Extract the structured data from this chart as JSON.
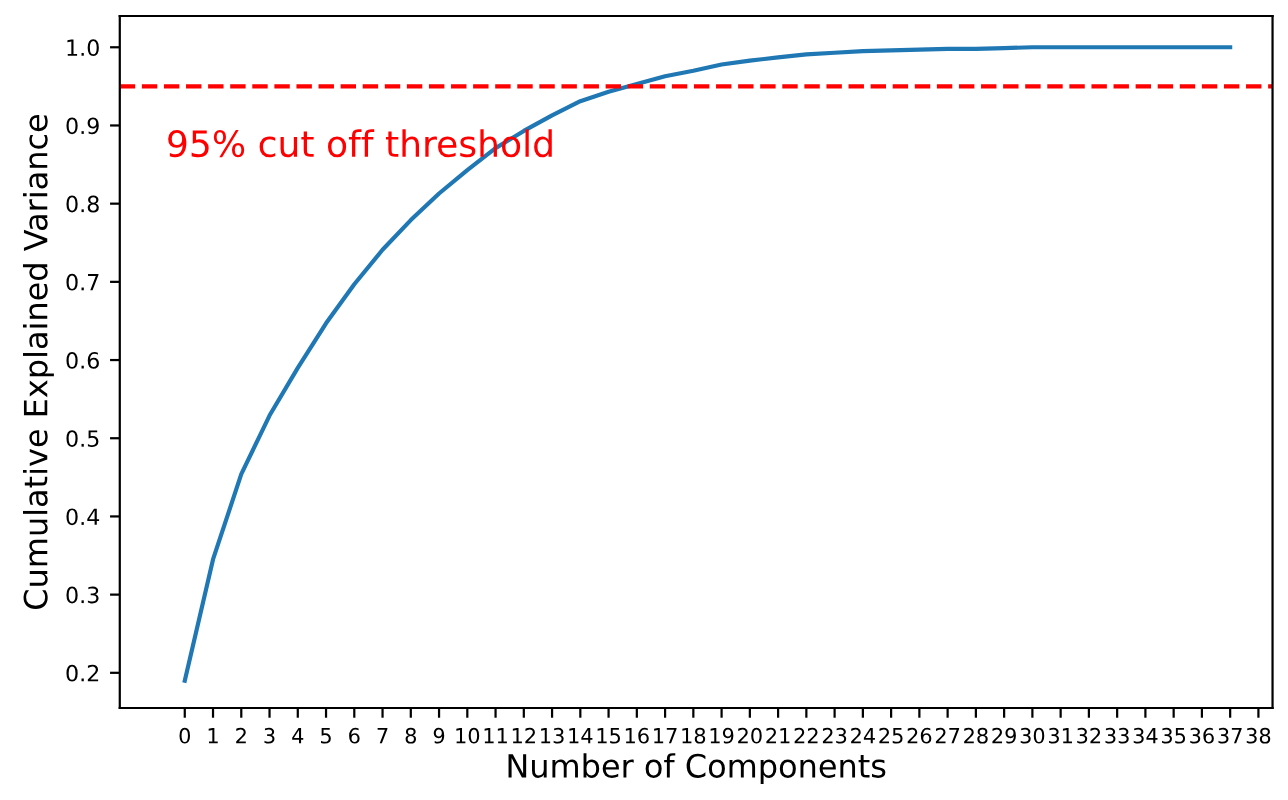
{
  "chart_data": {
    "type": "line",
    "xlabel": "Number of Components",
    "ylabel": "Cumulative Explained Variance",
    "x": [
      0,
      1,
      2,
      3,
      4,
      5,
      6,
      7,
      8,
      9,
      10,
      11,
      12,
      13,
      14,
      15,
      16,
      17,
      18,
      19,
      20,
      21,
      22,
      23,
      24,
      25,
      26,
      27,
      28,
      29,
      30,
      31,
      32,
      33,
      34,
      35,
      36,
      37
    ],
    "series": [
      {
        "color": "#1f77b4",
        "values": [
          0.19,
          0.345,
          0.454,
          0.529,
          0.59,
          0.647,
          0.697,
          0.741,
          0.779,
          0.813,
          0.843,
          0.871,
          0.893,
          0.913,
          0.931,
          0.943,
          0.953,
          0.963,
          0.97,
          0.978,
          0.983,
          0.987,
          0.991,
          0.993,
          0.995,
          0.996,
          0.997,
          0.998,
          0.998,
          0.999,
          1.0,
          1.0,
          1.0,
          1.0,
          1.0,
          1.0,
          1.0,
          1.0
        ]
      }
    ],
    "xlim": [
      -2.3,
      38.5
    ],
    "xticks": [
      0,
      1,
      2,
      3,
      4,
      5,
      6,
      7,
      8,
      9,
      10,
      11,
      12,
      13,
      14,
      15,
      16,
      17,
      18,
      19,
      20,
      21,
      22,
      23,
      24,
      25,
      26,
      27,
      28,
      29,
      30,
      31,
      32,
      33,
      34,
      35,
      36,
      37,
      38
    ],
    "ylim": [
      0.155,
      1.04
    ],
    "yticks": [
      0.2,
      0.3,
      0.4,
      0.5,
      0.6,
      0.7,
      0.8,
      0.9,
      {
        "value": 1,
        "label": "1.0"
      }
    ],
    "ref_lines": [
      {
        "axis": "y",
        "value": 0.95,
        "label": "95% cut off threshold",
        "color": "#ff0000",
        "line_style": "dashed"
      }
    ],
    "grid": false,
    "legend": false,
    "marker": "none",
    "line_style": "solid"
  }
}
